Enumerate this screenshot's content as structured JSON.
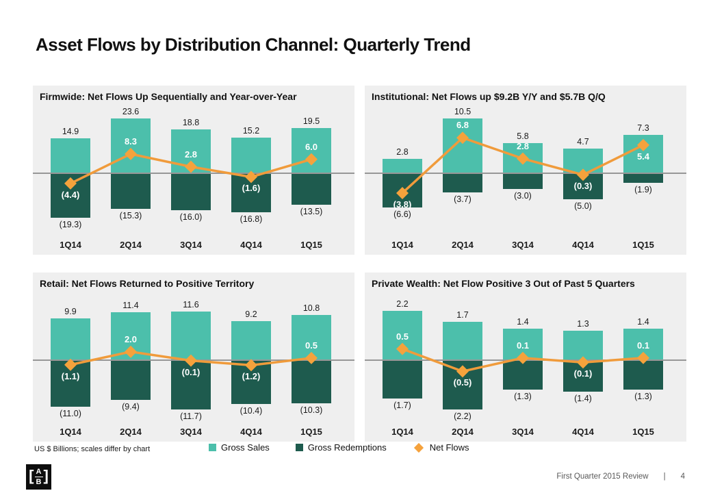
{
  "page": {
    "title": "Asset Flows by Distribution Channel: Quarterly Trend",
    "footnote": "US $ Billions; scales differ by chart",
    "footer": {
      "review": "First Quarter 2015 Review",
      "separator": "|",
      "page_number": "4"
    },
    "logo": {
      "left_bracket": "[",
      "top": "A",
      "bottom": "B",
      "right_bracket": "]"
    }
  },
  "legend": {
    "position": "bottom",
    "items": [
      {
        "label": "Gross Sales",
        "swatch": "square",
        "color": "#4CBFAB"
      },
      {
        "label": "Gross Redemptions",
        "swatch": "square",
        "color": "#1E5B4E"
      },
      {
        "label": "Net Flows",
        "swatch": "diamond",
        "color": "#F5A23C"
      }
    ]
  },
  "colors": {
    "gross_sales": "#4CBFAB",
    "gross_redemptions": "#1E5B4E",
    "net_flows": "#F5A23C",
    "net_flows_line": "#F09B3B",
    "panel_background": "#EFEFEF",
    "zero_line": "#979797"
  },
  "chart_data": [
    {
      "type": "bar+line",
      "title": "Firmwide: Net Flows Up Sequentially and Year-over-Year",
      "unit": "US $ Billions",
      "categories": [
        "1Q14",
        "2Q14",
        "3Q14",
        "4Q14",
        "1Q15"
      ],
      "series": [
        {
          "name": "Gross Sales",
          "type": "bar",
          "values": [
            14.9,
            23.6,
            18.8,
            15.2,
            19.5
          ],
          "labels": [
            "14.9",
            "23.6",
            "18.8",
            "15.2",
            "19.5"
          ]
        },
        {
          "name": "Gross Redemptions",
          "type": "bar",
          "values": [
            -19.3,
            -15.3,
            -16.0,
            -16.8,
            -13.5
          ],
          "labels": [
            "(19.3)",
            "(15.3)",
            "(16.0)",
            "(16.8)",
            "(13.5)"
          ]
        },
        {
          "name": "Net Flows",
          "type": "line",
          "values": [
            -4.4,
            8.3,
            2.8,
            -1.6,
            6.0
          ],
          "labels": [
            "(4.4)",
            "8.3",
            "2.8",
            "(1.6)",
            "6.0"
          ],
          "label_pos": [
            "below",
            "above",
            "above",
            "below",
            "above"
          ]
        }
      ]
    },
    {
      "type": "bar+line",
      "title": "Institutional: Net Flows up $9.2B Y/Y and $5.7B Q/Q",
      "unit": "US $ Billions",
      "categories": [
        "1Q14",
        "2Q14",
        "3Q14",
        "4Q14",
        "1Q15"
      ],
      "series": [
        {
          "name": "Gross Sales",
          "type": "bar",
          "values": [
            2.8,
            10.5,
            5.8,
            4.7,
            7.3
          ],
          "labels": [
            "2.8",
            "10.5",
            "5.8",
            "4.7",
            "7.3"
          ]
        },
        {
          "name": "Gross Redemptions",
          "type": "bar",
          "values": [
            -6.6,
            -3.7,
            -3.0,
            -5.0,
            -1.9
          ],
          "labels": [
            "(6.6)",
            "(3.7)",
            "(3.0)",
            "(5.0)",
            "(1.9)"
          ]
        },
        {
          "name": "Net Flows",
          "type": "line",
          "values": [
            -3.8,
            6.8,
            2.8,
            -0.3,
            5.4
          ],
          "labels": [
            "(3.8)",
            "6.8",
            "2.8",
            "(0.3)",
            "5.4"
          ],
          "label_pos": [
            "below",
            "above",
            "above",
            "below",
            "below"
          ]
        }
      ]
    },
    {
      "type": "bar+line",
      "title": "Retail: Net Flows Returned to Positive Territory",
      "unit": "US $ Billions",
      "categories": [
        "1Q14",
        "2Q14",
        "3Q14",
        "4Q14",
        "1Q15"
      ],
      "series": [
        {
          "name": "Gross Sales",
          "type": "bar",
          "values": [
            9.9,
            11.4,
            11.6,
            9.2,
            10.8
          ],
          "labels": [
            "9.9",
            "11.4",
            "11.6",
            "9.2",
            "10.8"
          ]
        },
        {
          "name": "Gross Redemptions",
          "type": "bar",
          "values": [
            -11.0,
            -9.4,
            -11.7,
            -10.4,
            -10.3
          ],
          "labels": [
            "(11.0)",
            "(9.4)",
            "(11.7)",
            "(10.4)",
            "(10.3)"
          ]
        },
        {
          "name": "Net Flows",
          "type": "line",
          "values": [
            -1.1,
            2.0,
            -0.1,
            -1.2,
            0.5
          ],
          "labels": [
            "(1.1)",
            "2.0",
            "(0.1)",
            "(1.2)",
            "0.5"
          ],
          "label_pos": [
            "below",
            "above",
            "below",
            "below",
            "above"
          ]
        }
      ]
    },
    {
      "type": "bar+line",
      "title": "Private Wealth: Net Flow Positive 3 Out of Past 5 Quarters",
      "unit": "US $ Billions",
      "categories": [
        "1Q14",
        "2Q14",
        "3Q14",
        "4Q14",
        "1Q15"
      ],
      "series": [
        {
          "name": "Gross Sales",
          "type": "bar",
          "values": [
            2.2,
            1.7,
            1.4,
            1.3,
            1.4
          ],
          "labels": [
            "2.2",
            "1.7",
            "1.4",
            "1.3",
            "1.4"
          ]
        },
        {
          "name": "Gross Redemptions",
          "type": "bar",
          "values": [
            -1.7,
            -2.2,
            -1.3,
            -1.4,
            -1.3
          ],
          "labels": [
            "(1.7)",
            "(2.2)",
            "(1.3)",
            "(1.4)",
            "(1.3)"
          ]
        },
        {
          "name": "Net Flows",
          "type": "line",
          "values": [
            0.5,
            -0.5,
            0.1,
            -0.1,
            0.1
          ],
          "labels": [
            "0.5",
            "(0.5)",
            "0.1",
            "(0.1)",
            "0.1"
          ],
          "label_pos": [
            "above",
            "below",
            "above",
            "below",
            "above"
          ]
        }
      ]
    }
  ]
}
